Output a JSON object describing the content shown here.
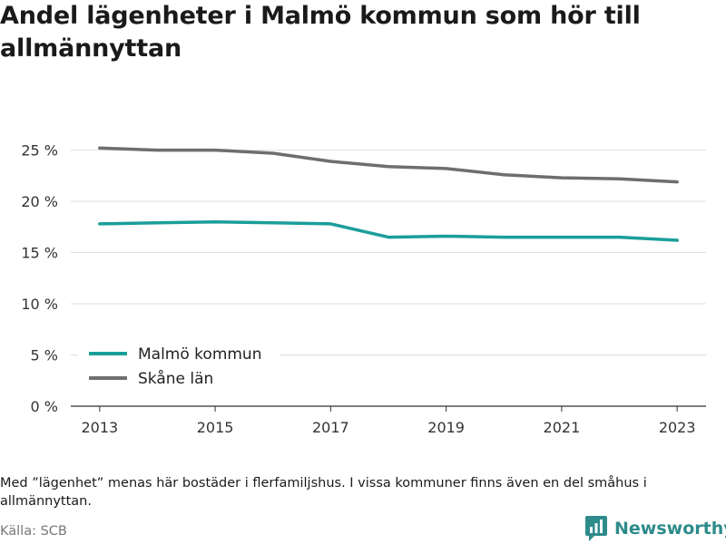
{
  "title": "Andel lägenheter i Malmö kommun som hör till allmännyttan",
  "note": "Med ”lägenhet” menas här bostäder i flerfamiljshus. I vissa kommuner finns även en del småhus i allmännyttan.",
  "source": "Källa: SCB",
  "brand": {
    "name": "Newsworthy",
    "icon": "newsworthy-logo-icon",
    "color": "#2e8b8b"
  },
  "chart_data": {
    "type": "line",
    "x": [
      2013,
      2014,
      2015,
      2016,
      2017,
      2018,
      2019,
      2020,
      2021,
      2022,
      2023
    ],
    "x_tick_labels": [
      "2013",
      "2015",
      "2017",
      "2019",
      "2021",
      "2023"
    ],
    "x_ticks": [
      2013,
      2015,
      2017,
      2019,
      2021,
      2023
    ],
    "y_ticks": [
      0,
      5,
      10,
      15,
      20,
      25
    ],
    "y_tick_labels": [
      "0 %",
      "5 %",
      "10 %",
      "15 %",
      "20 %",
      "25 %"
    ],
    "ylim": [
      0,
      27
    ],
    "xlim": [
      2012.5,
      2023.5
    ],
    "grid": true,
    "legend_position": "bottom-left",
    "series": [
      {
        "name": "Malmö kommun",
        "color": "#1a9e9a",
        "values": [
          17.8,
          17.9,
          18.0,
          17.9,
          17.8,
          16.5,
          16.6,
          16.5,
          16.5,
          16.5,
          16.2
        ]
      },
      {
        "name": "Skåne län",
        "color": "#6e6e6e",
        "values": [
          25.2,
          25.0,
          25.0,
          24.7,
          23.9,
          23.4,
          23.2,
          22.6,
          22.3,
          22.2,
          21.9
        ]
      }
    ]
  }
}
